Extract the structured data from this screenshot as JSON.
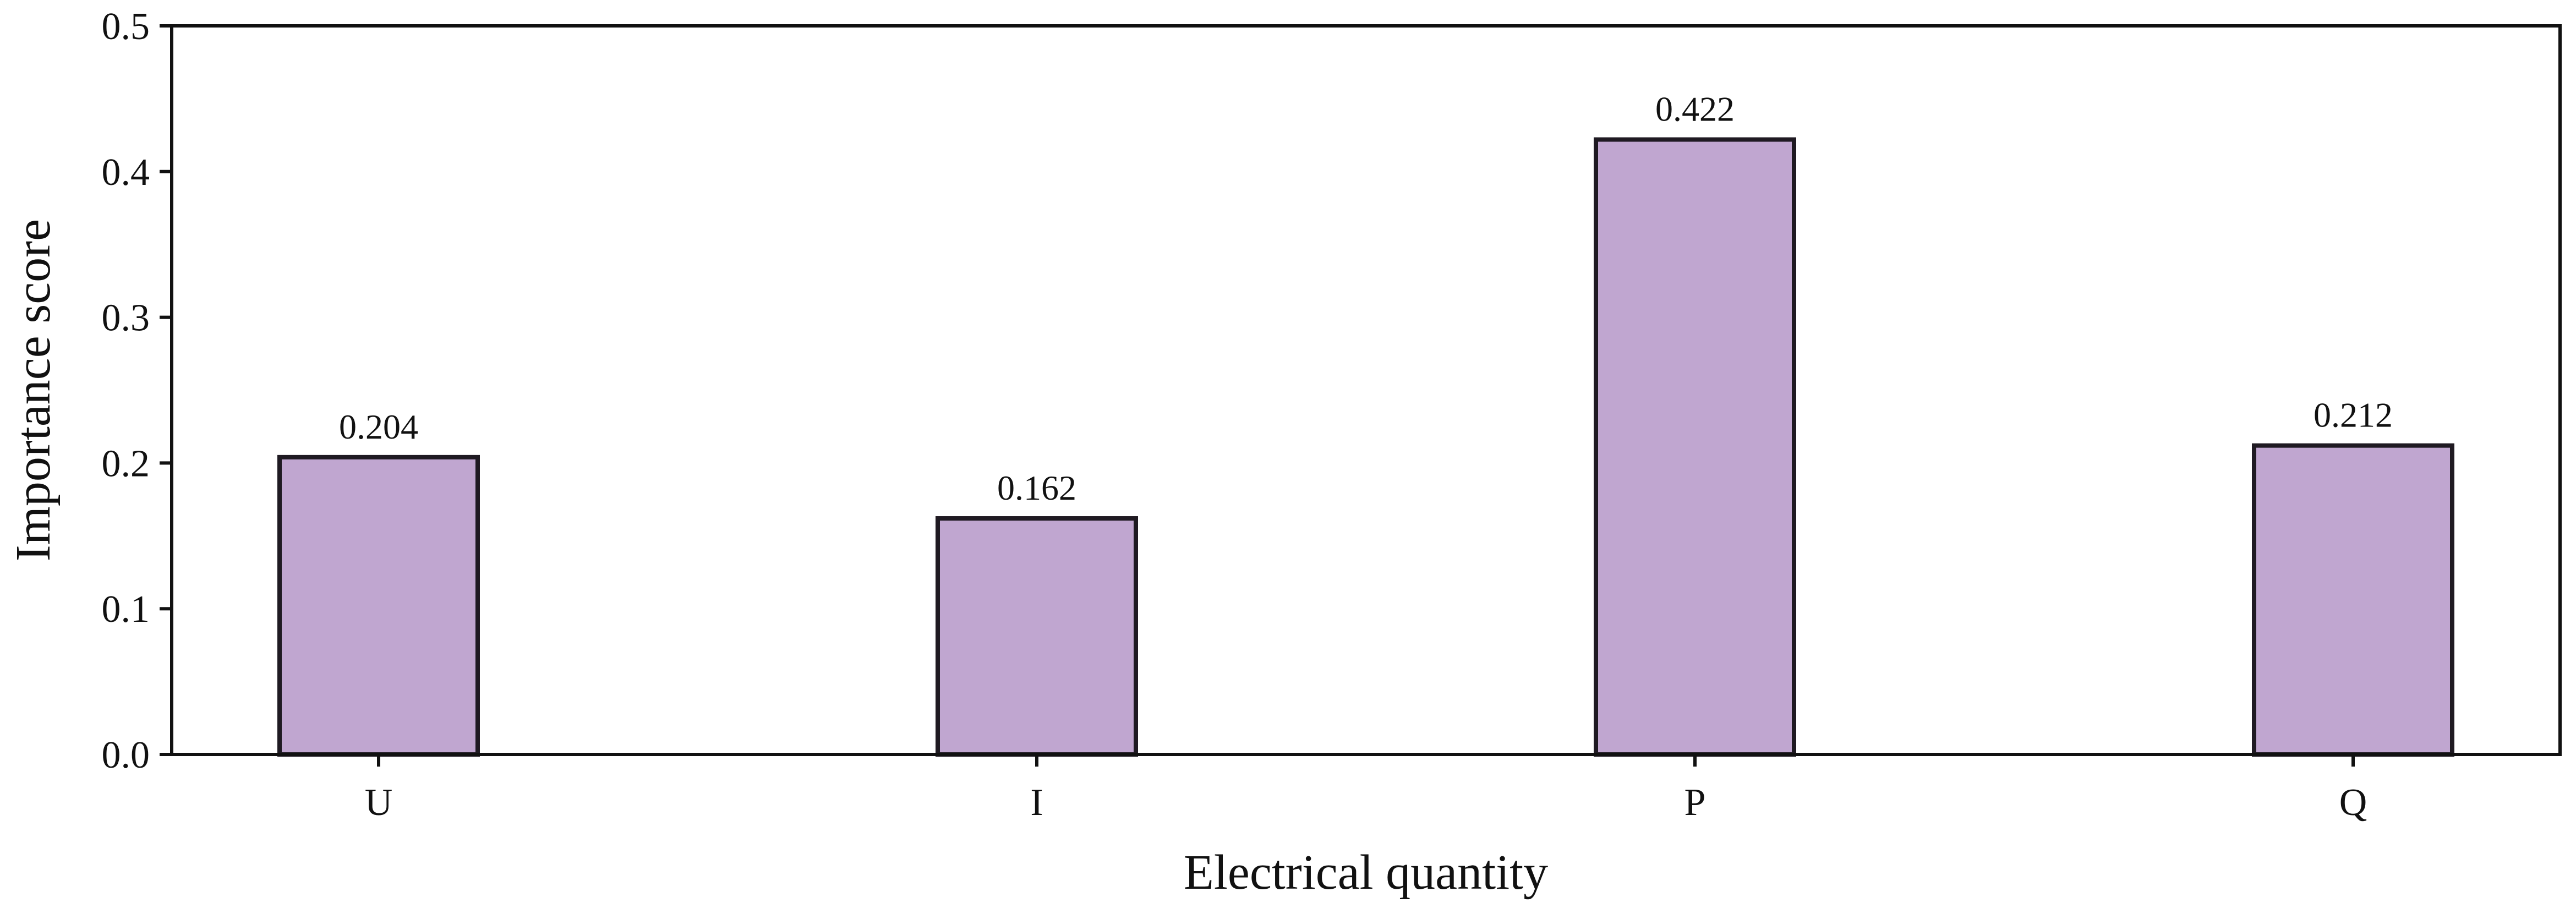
{
  "chart_data": {
    "type": "bar",
    "title": "",
    "xlabel": "Electrical quantity",
    "ylabel": "Importance score",
    "categories": [
      "U",
      "I",
      "P",
      "Q"
    ],
    "values": [
      0.204,
      0.162,
      0.422,
      0.212
    ],
    "data_labels": [
      "0.204",
      "0.162",
      "0.422",
      "0.212"
    ],
    "ylim": [
      0,
      0.5
    ],
    "yticks": [
      0.0,
      0.1,
      0.2,
      0.3,
      0.4,
      0.5
    ],
    "ytick_labels": [
      "0.0",
      "0.1",
      "0.2",
      "0.3",
      "0.4",
      "0.5"
    ],
    "grid": false,
    "legend": "none",
    "colors": {
      "bar_fill": "#c0a6d0",
      "bar_edge": "#1f1a22",
      "axis": "#111111"
    }
  }
}
